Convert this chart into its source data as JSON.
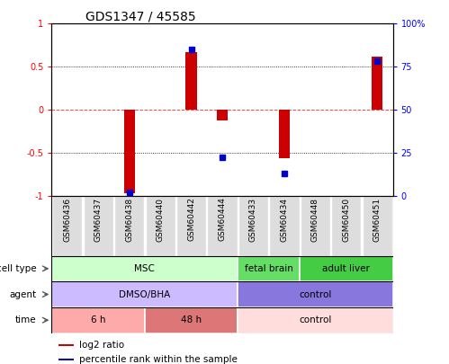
{
  "title": "GDS1347 / 45585",
  "samples": [
    "GSM60436",
    "GSM60437",
    "GSM60438",
    "GSM60440",
    "GSM60442",
    "GSM60444",
    "GSM60433",
    "GSM60434",
    "GSM60448",
    "GSM60450",
    "GSM60451"
  ],
  "log2_ratio": [
    0,
    0,
    -0.97,
    0,
    0.67,
    -0.13,
    0,
    -0.57,
    0,
    0,
    0.62
  ],
  "percentile_rank": [
    null,
    null,
    2,
    null,
    85,
    22,
    null,
    13,
    null,
    null,
    78
  ],
  "cell_type_groups": [
    {
      "label": "MSC",
      "start": 0,
      "end": 5,
      "color": "#ccffcc"
    },
    {
      "label": "fetal brain",
      "start": 6,
      "end": 7,
      "color": "#66dd66"
    },
    {
      "label": "adult liver",
      "start": 8,
      "end": 10,
      "color": "#44cc44"
    }
  ],
  "agent_groups": [
    {
      "label": "DMSO/BHA",
      "start": 0,
      "end": 5,
      "color": "#ccbbff"
    },
    {
      "label": "control",
      "start": 6,
      "end": 10,
      "color": "#8877dd"
    }
  ],
  "time_groups": [
    {
      "label": "6 h",
      "start": 0,
      "end": 2,
      "color": "#ffaaaa"
    },
    {
      "label": "48 h",
      "start": 3,
      "end": 5,
      "color": "#dd7777"
    },
    {
      "label": "control",
      "start": 6,
      "end": 10,
      "color": "#ffdddd"
    }
  ],
  "bar_color": "#cc0000",
  "dot_color": "#0000cc",
  "ylim": [
    -1,
    1
  ],
  "yticks_left": [
    -1,
    -0.5,
    0,
    0.5,
    1
  ],
  "yticks_right": [
    0,
    25,
    50,
    75,
    100
  ],
  "hline_color": "#ff4444",
  "grid_color": "#aaaaaa",
  "sample_bg": "#dddddd"
}
